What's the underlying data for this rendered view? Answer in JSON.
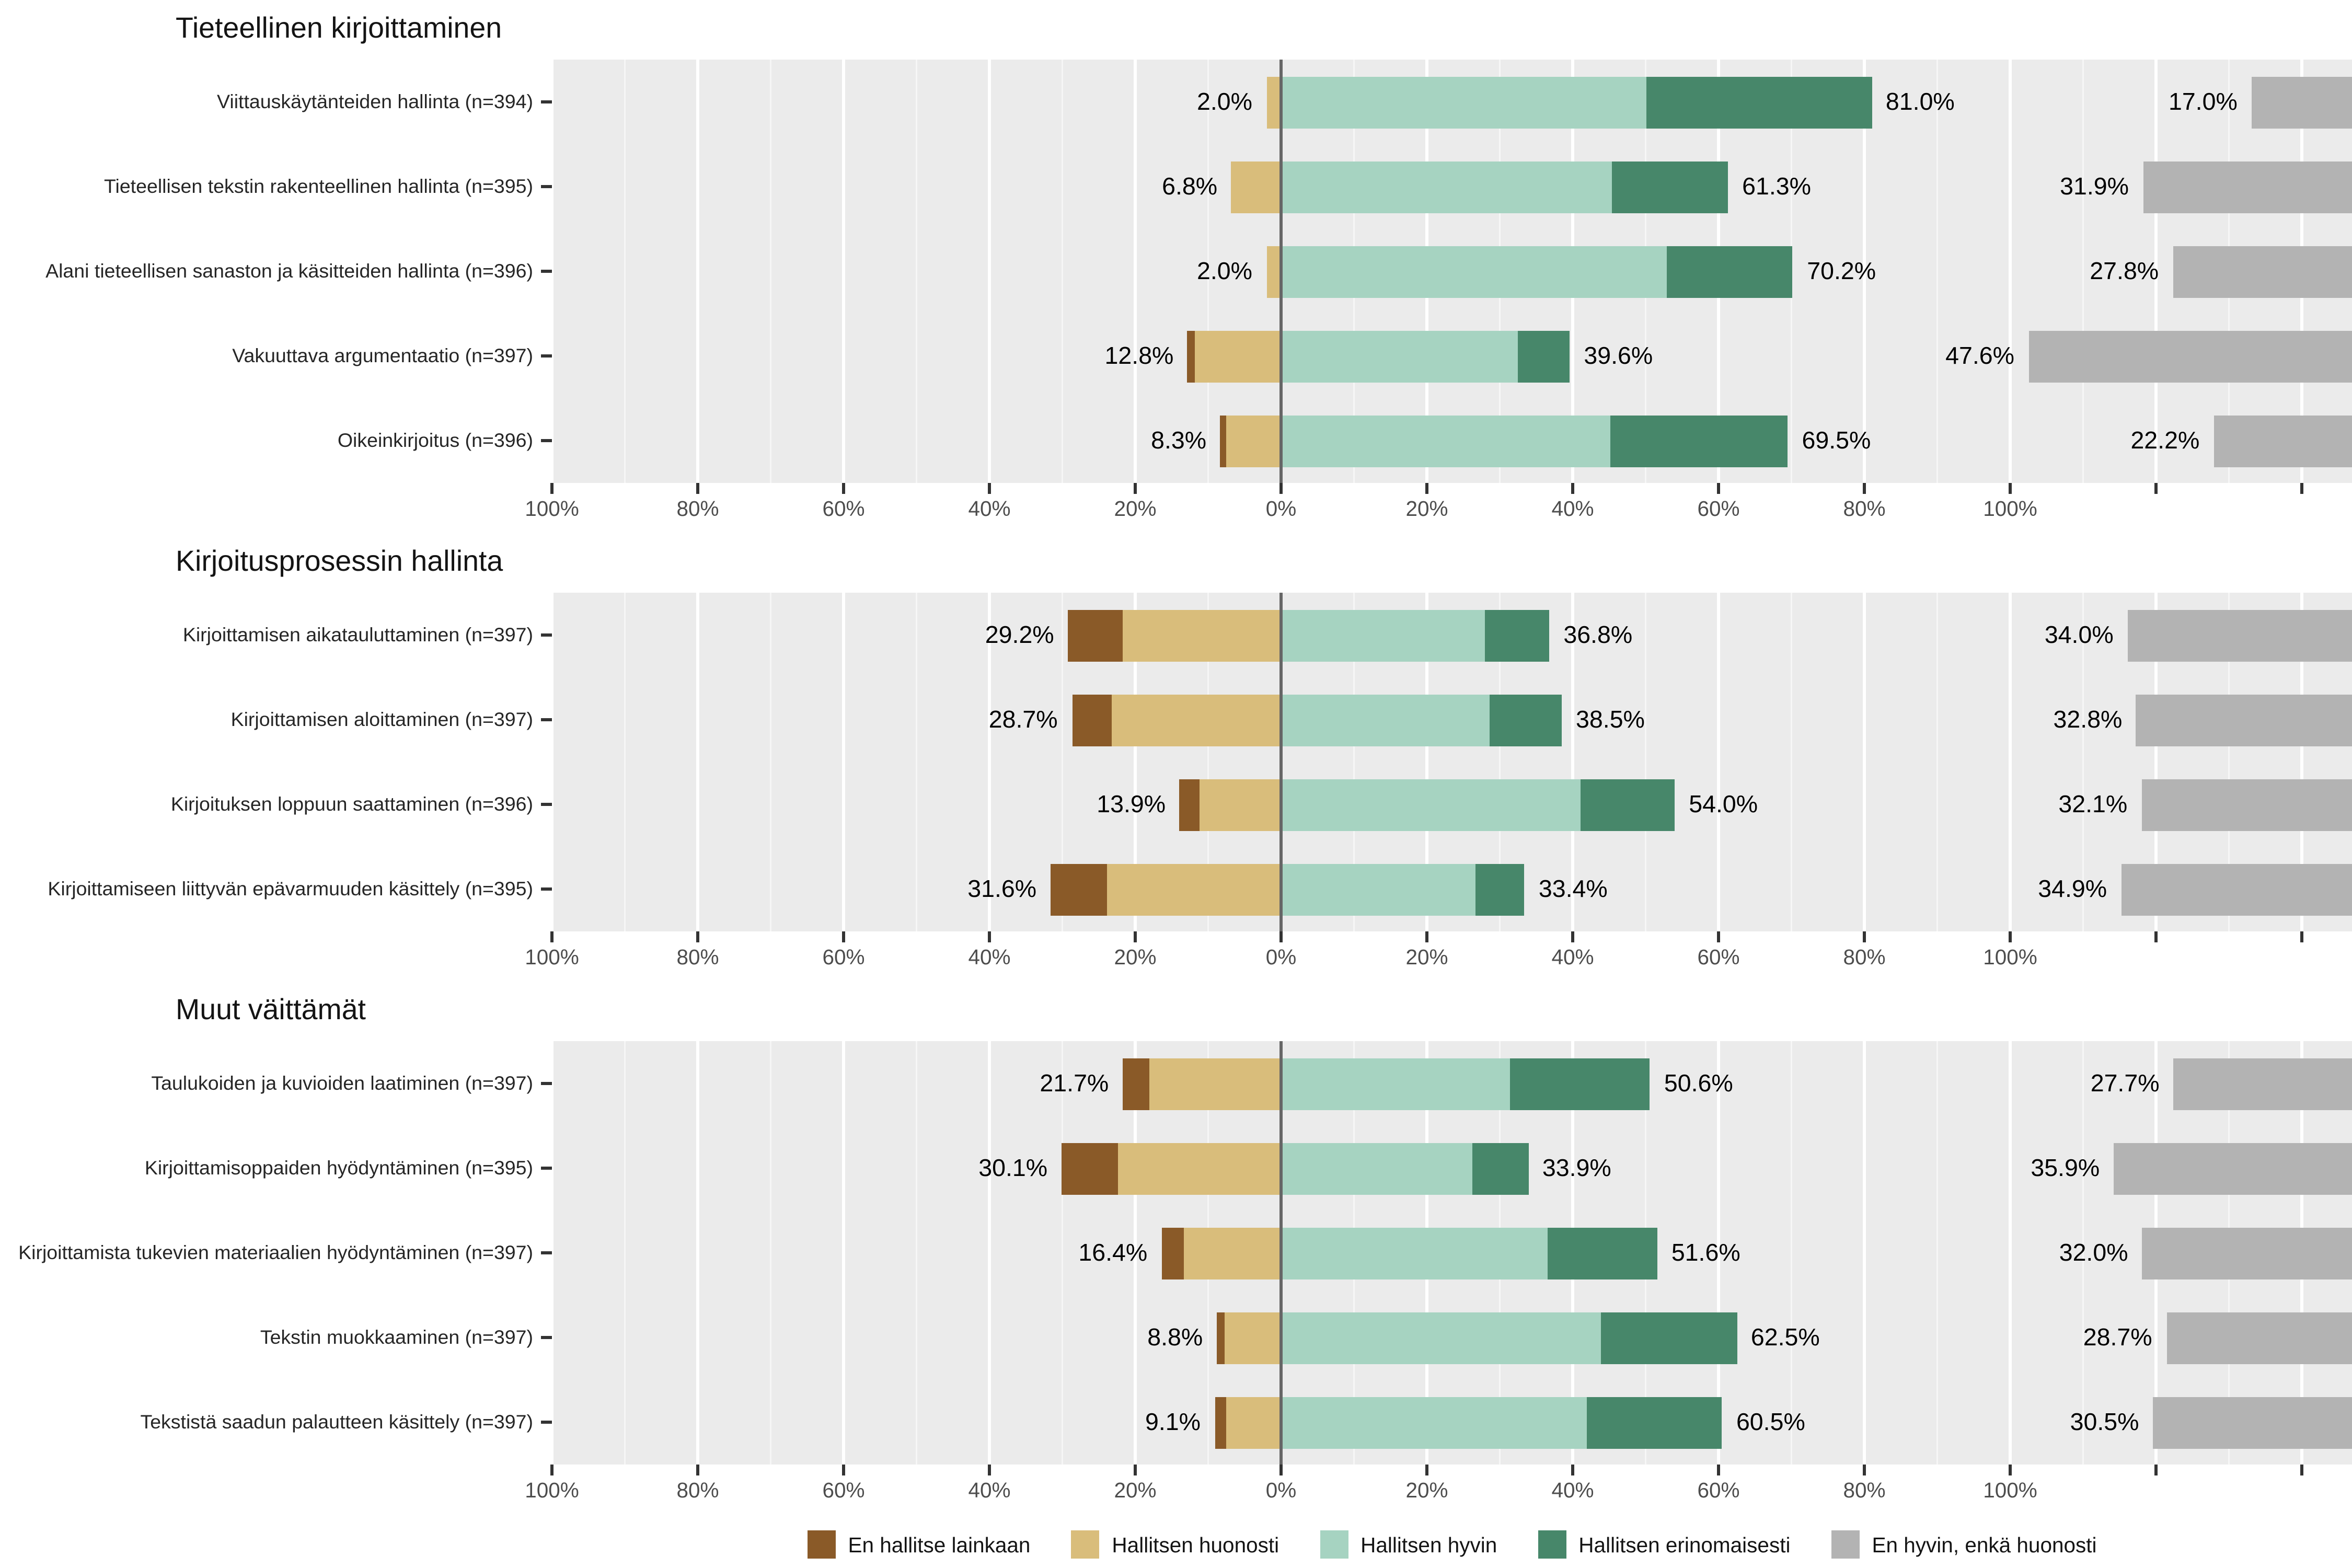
{
  "colors": {
    "plot_bg": "#ebebeb",
    "grid": "#ffffff",
    "zero_line": "#666666",
    "tick": "#333333",
    "axis_text": "#4d4d4d"
  },
  "legend": [
    {
      "key": "en_hallitse_lainkaan",
      "label": "En hallitse lainkaan",
      "color": "#8a5a28"
    },
    {
      "key": "hallitsen_huonosti",
      "label": "Hallitsen huonosti",
      "color": "#d9bd7b"
    },
    {
      "key": "hallitsen_hyvin",
      "label": "Hallitsen hyvin",
      "color": "#a6d3c1"
    },
    {
      "key": "hallitsen_erinomaisesti",
      "label": "Hallitsen erinomaisesti",
      "color": "#47876a"
    },
    {
      "key": "en_hyvin_enka_huonosti",
      "label": "En hyvin, enkä huonosti",
      "color": "#b3b3b3"
    }
  ],
  "chart_data": {
    "type": "bar",
    "subtype": "diverging_stacked_likert",
    "unit": "percent",
    "axis": {
      "ticks": [
        {
          "p": -100,
          "label": "100%"
        },
        {
          "p": -80,
          "label": "80%"
        },
        {
          "p": -60,
          "label": "60%"
        },
        {
          "p": -40,
          "label": "40%"
        },
        {
          "p": -20,
          "label": "20%"
        },
        {
          "p": 0,
          "label": "0%"
        },
        {
          "p": 20,
          "label": "20%"
        },
        {
          "p": 40,
          "label": "40%"
        },
        {
          "p": 60,
          "label": "60%"
        },
        {
          "p": 80,
          "label": "80%"
        },
        {
          "p": 100,
          "label": "100%"
        },
        {
          "p": 120,
          "label": ""
        },
        {
          "p": 140,
          "label": ""
        }
      ]
    },
    "panels": [
      {
        "title": "Tieteellinen kirjoittaminen",
        "rows": [
          {
            "label": "Viittauskäytänteiden hallinta (n=394)",
            "neg_label": "2.0%",
            "pos_label": "81.0%",
            "neutral_label": "17.0%",
            "values": {
              "en_hallitse_lainkaan": 0.0,
              "hallitsen_huonosti": 2.0,
              "hallitsen_hyvin": 50.0,
              "hallitsen_erinomaisesti": 31.0,
              "en_hyvin_enka_huonosti": 17.0
            }
          },
          {
            "label": "Tieteellisen tekstin rakenteellinen hallinta (n=395)",
            "neg_label": "6.8%",
            "pos_label": "61.3%",
            "neutral_label": "31.9%",
            "values": {
              "en_hallitse_lainkaan": 0.0,
              "hallitsen_huonosti": 6.8,
              "hallitsen_hyvin": 45.3,
              "hallitsen_erinomaisesti": 16.0,
              "en_hyvin_enka_huonosti": 31.9
            }
          },
          {
            "label": "Alani tieteellisen sanaston ja käsitteiden hallinta (n=396)",
            "neg_label": "2.0%",
            "pos_label": "70.2%",
            "neutral_label": "27.8%",
            "values": {
              "en_hallitse_lainkaan": 0.0,
              "hallitsen_huonosti": 2.0,
              "hallitsen_hyvin": 53.0,
              "hallitsen_erinomaisesti": 17.2,
              "en_hyvin_enka_huonosti": 27.8
            }
          },
          {
            "label": "Vakuuttava argumentaatio (n=397)",
            "neg_label": "12.8%",
            "pos_label": "39.6%",
            "neutral_label": "47.6%",
            "values": {
              "en_hallitse_lainkaan": 1.0,
              "hallitsen_huonosti": 11.8,
              "hallitsen_hyvin": 32.5,
              "hallitsen_erinomaisesti": 7.1,
              "en_hyvin_enka_huonosti": 47.6
            }
          },
          {
            "label": "Oikeinkirjoitus (n=396)",
            "neg_label": "8.3%",
            "pos_label": "69.5%",
            "neutral_label": "22.2%",
            "values": {
              "en_hallitse_lainkaan": 0.8,
              "hallitsen_huonosti": 7.5,
              "hallitsen_hyvin": 45.2,
              "hallitsen_erinomaisesti": 24.3,
              "en_hyvin_enka_huonosti": 22.2
            }
          }
        ]
      },
      {
        "title": "Kirjoitusprosessin hallinta",
        "rows": [
          {
            "label": "Kirjoittamisen aikatauluttaminen (n=397)",
            "neg_label": "29.2%",
            "pos_label": "36.8%",
            "neutral_label": "34.0%",
            "values": {
              "en_hallitse_lainkaan": 7.5,
              "hallitsen_huonosti": 21.7,
              "hallitsen_hyvin": 28.0,
              "hallitsen_erinomaisesti": 8.8,
              "en_hyvin_enka_huonosti": 34.0
            }
          },
          {
            "label": "Kirjoittamisen aloittaminen (n=397)",
            "neg_label": "28.7%",
            "pos_label": "38.5%",
            "neutral_label": "32.8%",
            "values": {
              "en_hallitse_lainkaan": 5.4,
              "hallitsen_huonosti": 23.3,
              "hallitsen_hyvin": 28.5,
              "hallitsen_erinomaisesti": 10.0,
              "en_hyvin_enka_huonosti": 32.8
            }
          },
          {
            "label": "Kirjoituksen loppuun saattaminen (n=396)",
            "neg_label": "13.9%",
            "pos_label": "54.0%",
            "neutral_label": "32.1%",
            "values": {
              "en_hallitse_lainkaan": 2.7,
              "hallitsen_huonosti": 11.2,
              "hallitsen_hyvin": 41.0,
              "hallitsen_erinomaisesti": 13.0,
              "en_hyvin_enka_huonosti": 32.1
            }
          },
          {
            "label": "Kirjoittamiseen liittyvän epävarmuuden käsittely (n=395)",
            "neg_label": "31.6%",
            "pos_label": "33.4%",
            "neutral_label": "34.9%",
            "values": {
              "en_hallitse_lainkaan": 7.7,
              "hallitsen_huonosti": 23.9,
              "hallitsen_hyvin": 26.7,
              "hallitsen_erinomaisesti": 6.7,
              "en_hyvin_enka_huonosti": 34.9
            }
          }
        ]
      },
      {
        "title": "Muut väittämät",
        "rows": [
          {
            "label": "Taulukoiden ja kuvioiden laatiminen (n=397)",
            "neg_label": "21.7%",
            "pos_label": "50.6%",
            "neutral_label": "27.7%",
            "values": {
              "en_hallitse_lainkaan": 3.7,
              "hallitsen_huonosti": 18.0,
              "hallitsen_hyvin": 31.5,
              "hallitsen_erinomaisesti": 19.1,
              "en_hyvin_enka_huonosti": 27.7
            }
          },
          {
            "label": "Kirjoittamisoppaiden hyödyntäminen (n=395)",
            "neg_label": "30.1%",
            "pos_label": "33.9%",
            "neutral_label": "35.9%",
            "values": {
              "en_hallitse_lainkaan": 7.7,
              "hallitsen_huonosti": 22.4,
              "hallitsen_hyvin": 26.3,
              "hallitsen_erinomaisesti": 7.6,
              "en_hyvin_enka_huonosti": 35.9
            }
          },
          {
            "label": "Kirjoittamista tukevien materiaalien hyödyntäminen (n=397)",
            "neg_label": "16.4%",
            "pos_label": "51.6%",
            "neutral_label": "32.0%",
            "values": {
              "en_hallitse_lainkaan": 3.0,
              "hallitsen_huonosti": 13.4,
              "hallitsen_hyvin": 36.5,
              "hallitsen_erinomaisesti": 15.1,
              "en_hyvin_enka_huonosti": 32.0
            }
          },
          {
            "label": "Tekstin muokkaaminen (n=397)",
            "neg_label": "8.8%",
            "pos_label": "62.5%",
            "neutral_label": "28.7%",
            "values": {
              "en_hallitse_lainkaan": 1.0,
              "hallitsen_huonosti": 7.8,
              "hallitsen_hyvin": 43.8,
              "hallitsen_erinomaisesti": 18.7,
              "en_hyvin_enka_huonosti": 28.7
            }
          },
          {
            "label": "Tekstistä saadun palautteen käsittely (n=397)",
            "neg_label": "9.1%",
            "pos_label": "60.5%",
            "neutral_label": "30.5%",
            "values": {
              "en_hallitse_lainkaan": 1.5,
              "hallitsen_huonosti": 7.6,
              "hallitsen_hyvin": 42.0,
              "hallitsen_erinomaisesti": 18.5,
              "en_hyvin_enka_huonosti": 30.5
            }
          }
        ]
      }
    ]
  }
}
